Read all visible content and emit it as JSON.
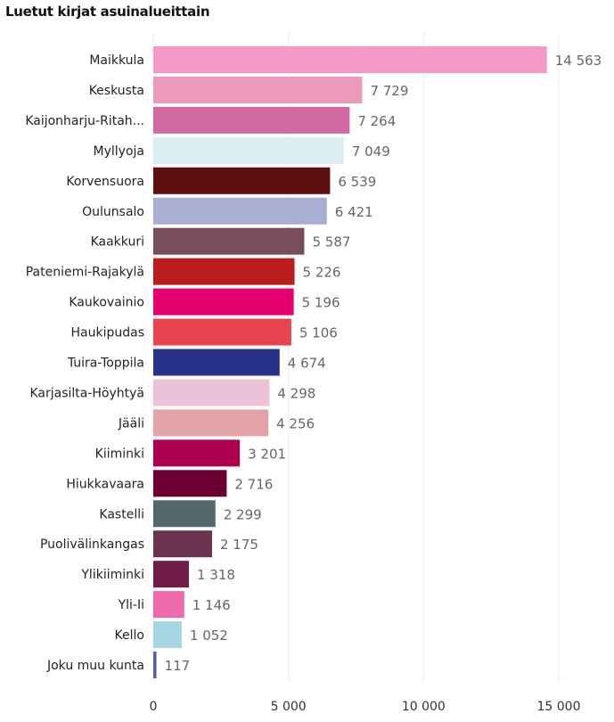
{
  "chart_data": {
    "type": "bar",
    "orientation": "horizontal",
    "title": "Luetut kirjat asuinalueittain",
    "xlabel": "",
    "ylabel": "",
    "xlim": [
      0,
      15000
    ],
    "x_ticks": [
      "0",
      "5 000",
      "10 000",
      "15 000"
    ],
    "x_tick_values": [
      0,
      5000,
      10000,
      15000
    ],
    "grid": true,
    "categories": [
      "Maikkula",
      "Keskusta",
      "Kaijonharju-Ritah...",
      "Myllyoja",
      "Korvensuora",
      "Oulunsalo",
      "Kaakkuri",
      "Pateniemi-Rajakylä",
      "Kaukovainio",
      "Haukipudas",
      "Tuira-Toppila",
      "Karjasilta-Höyhtyä",
      "Jääli",
      "Kiiminki",
      "Hiukkavaara",
      "Kastelli",
      "Puolivälinkangas",
      "Ylikiiminki",
      "Yli-Ii",
      "Kello",
      "Joku muu kunta"
    ],
    "values": [
      14563,
      7729,
      7264,
      7049,
      6539,
      6421,
      5587,
      5226,
      5196,
      5106,
      4674,
      4298,
      4256,
      3201,
      2716,
      2299,
      2175,
      1318,
      1146,
      1052,
      117
    ],
    "value_labels": [
      "14 563",
      "7 729",
      "7 264",
      "7 049",
      "6 539",
      "6 421",
      "5 587",
      "5 226",
      "5 196",
      "5 106",
      "4 674",
      "4 298",
      "4 256",
      "3 201",
      "2 716",
      "2 299",
      "2 175",
      "1 318",
      "1 146",
      "1 052",
      "117"
    ],
    "colors": [
      "#f49ac6",
      "#ea9bbb",
      "#d46aa4",
      "#daedf3",
      "#5e0f0f",
      "#a9afd2",
      "#7a4d5c",
      "#bb1c1c",
      "#e5006e",
      "#e8434f",
      "#283188",
      "#ebc2d8",
      "#e2a4a6",
      "#ad004f",
      "#6d0033",
      "#51686c",
      "#6b3350",
      "#731c47",
      "#ee6bab",
      "#a5d7e2",
      "#5a5fa5"
    ]
  }
}
